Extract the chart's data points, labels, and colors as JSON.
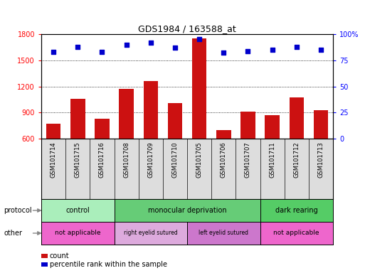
{
  "title": "GDS1984 / 163588_at",
  "samples": [
    "GSM101714",
    "GSM101715",
    "GSM101716",
    "GSM101708",
    "GSM101709",
    "GSM101710",
    "GSM101705",
    "GSM101706",
    "GSM101707",
    "GSM101711",
    "GSM101712",
    "GSM101713"
  ],
  "counts": [
    770,
    1060,
    830,
    1170,
    1260,
    1010,
    1750,
    700,
    910,
    870,
    1070,
    930
  ],
  "percentile_ranks": [
    83,
    88,
    83,
    90,
    92,
    87,
    95,
    82,
    84,
    85,
    88,
    85
  ],
  "ylim_left": [
    600,
    1800
  ],
  "ylim_right": [
    0,
    100
  ],
  "yticks_left": [
    600,
    900,
    1200,
    1500,
    1800
  ],
  "yticks_right": [
    0,
    25,
    50,
    75,
    100
  ],
  "bar_color": "#cc1111",
  "dot_color": "#0000cc",
  "protocol_groups": [
    {
      "label": "control",
      "start": 0,
      "end": 3,
      "color": "#aaeebb"
    },
    {
      "label": "monocular deprivation",
      "start": 3,
      "end": 9,
      "color": "#66cc77"
    },
    {
      "label": "dark rearing",
      "start": 9,
      "end": 12,
      "color": "#55cc66"
    }
  ],
  "other_groups": [
    {
      "label": "not applicable",
      "start": 0,
      "end": 3,
      "color": "#ee66cc"
    },
    {
      "label": "right eyelid sutured",
      "start": 3,
      "end": 6,
      "color": "#ddaadd"
    },
    {
      "label": "left eyelid sutured",
      "start": 6,
      "end": 9,
      "color": "#cc77cc"
    },
    {
      "label": "not applicable",
      "start": 9,
      "end": 12,
      "color": "#ee66cc"
    }
  ],
  "legend_count_label": "count",
  "legend_percentile_label": "percentile rank within the sample",
  "protocol_label": "protocol",
  "other_label": "other",
  "bg_color": "#ffffff",
  "label_box_color": "#dddddd",
  "spine_color": "#000000"
}
